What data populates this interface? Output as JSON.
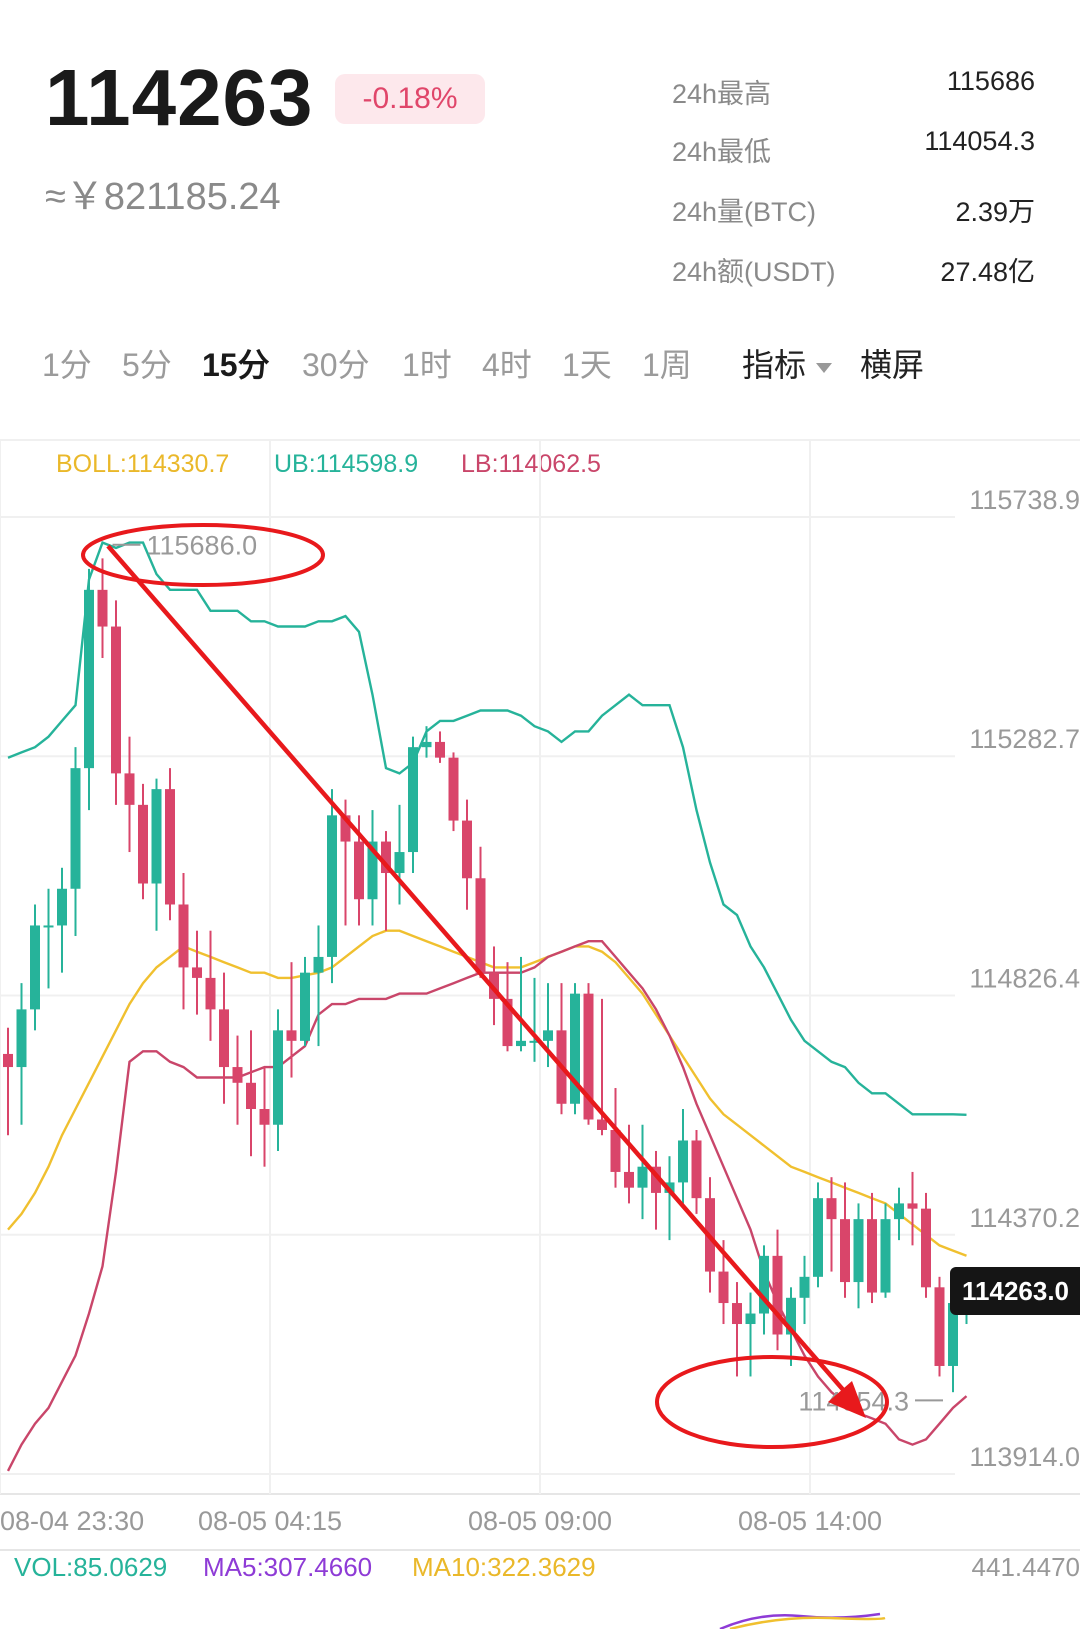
{
  "header": {
    "price": "114263",
    "change": "-0.18%",
    "cny": "≈￥821185.24"
  },
  "stats": [
    {
      "label": "24h最高",
      "value": "115686"
    },
    {
      "label": "24h最低",
      "value": "114054.3"
    },
    {
      "label": "24h量(BTC)",
      "value": "2.39万"
    },
    {
      "label": "24h额(USDT)",
      "value": "27.48亿"
    }
  ],
  "tabs": [
    "1分",
    "5分",
    "15分",
    "30分",
    "1时",
    "4时",
    "1天",
    "1周"
  ],
  "active_tab": "15分",
  "indicator_label": "指标",
  "landscape_label": "横屏",
  "boll_legend": {
    "boll": "BOLL:114330.7",
    "ub": "UB:114598.9",
    "lb": "LB:114062.5"
  },
  "vol_legend": {
    "vol": "VOL:85.0629",
    "ma5": "MA5:307.4660",
    "ma10": "MA10:322.3629",
    "max": "441.4470"
  },
  "last_price_tag": "114263.0",
  "colors": {
    "up": "#26b39a",
    "down": "#d9456a",
    "boll": "#f0c02f",
    "ub": "#26b39a",
    "lb": "#c9466a",
    "annotation": "#e8191c",
    "ma5": "#8e3bd6",
    "ma10": "#f0c02f"
  },
  "chart_data": {
    "type": "candlestick",
    "y_ticks": [
      "115738.9",
      "115282.7",
      "114826.4",
      "114370.2",
      "113914.0"
    ],
    "ylim": [
      113914.0,
      115738.9
    ],
    "x_ticks": [
      "08-04 23:30",
      "08-05 04:15",
      "08-05 09:00",
      "08-05 14:00"
    ],
    "high_marker": "115686.0",
    "low_marker": "114054.3",
    "candles": [
      [
        114715,
        114765,
        114560,
        114690
      ],
      [
        114690,
        114850,
        114580,
        114800
      ],
      [
        114800,
        115000,
        114760,
        114960
      ],
      [
        114960,
        115030,
        114840,
        114960
      ],
      [
        114960,
        115070,
        114870,
        115030
      ],
      [
        115030,
        115300,
        114940,
        115260
      ],
      [
        115260,
        115640,
        115180,
        115600
      ],
      [
        115600,
        115660,
        115470,
        115530
      ],
      [
        115530,
        115580,
        115190,
        115250
      ],
      [
        115250,
        115320,
        115100,
        115190
      ],
      [
        115190,
        115230,
        115010,
        115040
      ],
      [
        115040,
        115240,
        114950,
        115220
      ],
      [
        115220,
        115260,
        114970,
        115000
      ],
      [
        115000,
        115060,
        114800,
        114880
      ],
      [
        114880,
        114950,
        114790,
        114860
      ],
      [
        114860,
        114950,
        114740,
        114800
      ],
      [
        114800,
        114870,
        114620,
        114690
      ],
      [
        114690,
        114750,
        114580,
        114660
      ],
      [
        114660,
        114760,
        114520,
        114610
      ],
      [
        114610,
        114690,
        114500,
        114580
      ],
      [
        114580,
        114800,
        114530,
        114760
      ],
      [
        114760,
        114890,
        114670,
        114740
      ],
      [
        114740,
        114900,
        114730,
        114870
      ],
      [
        114870,
        114960,
        114730,
        114900
      ],
      [
        114900,
        115220,
        114850,
        115170
      ],
      [
        115170,
        115200,
        114960,
        115120
      ],
      [
        115120,
        115170,
        114960,
        115010
      ],
      [
        115010,
        115180,
        114960,
        115120
      ],
      [
        115120,
        115140,
        114950,
        115060
      ],
      [
        115060,
        115190,
        115000,
        115100
      ],
      [
        115100,
        115320,
        115060,
        115300
      ],
      [
        115300,
        115340,
        115280,
        115310
      ],
      [
        115310,
        115330,
        115270,
        115280
      ],
      [
        115280,
        115290,
        115140,
        115160
      ],
      [
        115160,
        115200,
        114990,
        115050
      ],
      [
        115050,
        115110,
        114860,
        114870
      ],
      [
        114870,
        114920,
        114770,
        114820
      ],
      [
        114820,
        114890,
        114720,
        114730
      ],
      [
        114730,
        114900,
        114720,
        114740
      ],
      [
        114740,
        114860,
        114700,
        114740
      ],
      [
        114740,
        114850,
        114690,
        114760
      ],
      [
        114760,
        114850,
        114600,
        114620
      ],
      [
        114620,
        114850,
        114600,
        114830
      ],
      [
        114830,
        114850,
        114580,
        114590
      ],
      [
        114590,
        114820,
        114560,
        114570
      ],
      [
        114570,
        114650,
        114460,
        114490
      ],
      [
        114490,
        114580,
        114430,
        114460
      ],
      [
        114460,
        114580,
        114400,
        114500
      ],
      [
        114500,
        114530,
        114380,
        114450
      ],
      [
        114450,
        114520,
        114360,
        114470
      ],
      [
        114470,
        114610,
        114430,
        114550
      ],
      [
        114550,
        114570,
        114410,
        114440
      ],
      [
        114440,
        114480,
        114260,
        114300
      ],
      [
        114300,
        114360,
        114200,
        114240
      ],
      [
        114240,
        114280,
        114100,
        114200
      ],
      [
        114200,
        114260,
        114100,
        114220
      ],
      [
        114220,
        114350,
        114180,
        114330
      ],
      [
        114330,
        114380,
        114150,
        114180
      ],
      [
        114180,
        114270,
        114120,
        114250
      ],
      [
        114250,
        114330,
        114200,
        114290
      ],
      [
        114290,
        114470,
        114270,
        114440
      ],
      [
        114440,
        114480,
        114300,
        114400
      ],
      [
        114400,
        114470,
        114250,
        114280
      ],
      [
        114280,
        114430,
        114230,
        114400
      ],
      [
        114400,
        114450,
        114240,
        114260
      ],
      [
        114260,
        114430,
        114250,
        114400
      ],
      [
        114400,
        114460,
        114360,
        114430
      ],
      [
        114430,
        114490,
        114350,
        114420
      ],
      [
        114420,
        114450,
        114250,
        114270
      ],
      [
        114270,
        114290,
        114100,
        114120
      ],
      [
        114120,
        114260,
        114070,
        114240
      ],
      [
        114240,
        114290,
        114200,
        114263
      ]
    ],
    "boll_mid": [
      114380,
      114410,
      114450,
      114500,
      114560,
      114610,
      114660,
      114710,
      114760,
      114810,
      114850,
      114880,
      114900,
      114920,
      114910,
      114900,
      114890,
      114880,
      114870,
      114870,
      114860,
      114860,
      114865,
      114870,
      114880,
      114900,
      114920,
      114940,
      114950,
      114950,
      114940,
      114930,
      114920,
      114910,
      114900,
      114890,
      114880,
      114880,
      114880,
      114890,
      114900,
      114910,
      114920,
      114920,
      114910,
      114890,
      114860,
      114830,
      114790,
      114750,
      114710,
      114670,
      114630,
      114600,
      114580,
      114560,
      114540,
      114520,
      114500,
      114490,
      114480,
      114470,
      114460,
      114450,
      114440,
      114430,
      114410,
      114390,
      114370,
      114350,
      114340,
      114330
    ],
    "boll_upper": [
      115280,
      115290,
      115300,
      115320,
      115350,
      115380,
      115620,
      115690,
      115680,
      115690,
      115690,
      115630,
      115600,
      115600,
      115600,
      115560,
      115560,
      115560,
      115540,
      115540,
      115530,
      115530,
      115530,
      115540,
      115540,
      115550,
      115520,
      115400,
      115260,
      115250,
      115270,
      115330,
      115350,
      115350,
      115360,
      115370,
      115370,
      115370,
      115360,
      115340,
      115330,
      115310,
      115330,
      115330,
      115360,
      115380,
      115400,
      115380,
      115380,
      115380,
      115300,
      115180,
      115080,
      115000,
      114980,
      114920,
      114880,
      114830,
      114780,
      114740,
      114720,
      114700,
      114690,
      114660,
      114640,
      114640,
      114620,
      114600,
      114600,
      114600,
      114600,
      114598.9
    ],
    "boll_lower": [
      113920,
      113970,
      114010,
      114040,
      114090,
      114140,
      114220,
      114310,
      114490,
      114700,
      114720,
      114720,
      114700,
      114690,
      114670,
      114670,
      114670,
      114670,
      114680,
      114690,
      114690,
      114710,
      114730,
      114790,
      114810,
      114810,
      114820,
      114820,
      114820,
      114830,
      114830,
      114830,
      114840,
      114850,
      114860,
      114870,
      114870,
      114870,
      114870,
      114880,
      114900,
      114910,
      114920,
      114930,
      114930,
      114900,
      114870,
      114840,
      114800,
      114750,
      114690,
      114620,
      114560,
      114500,
      114440,
      114380,
      114300,
      114240,
      114190,
      114140,
      114100,
      114070,
      114050,
      114030,
      114020,
      114010,
      113980,
      113970,
      113980,
      114010,
      114040,
      114062.5
    ]
  }
}
